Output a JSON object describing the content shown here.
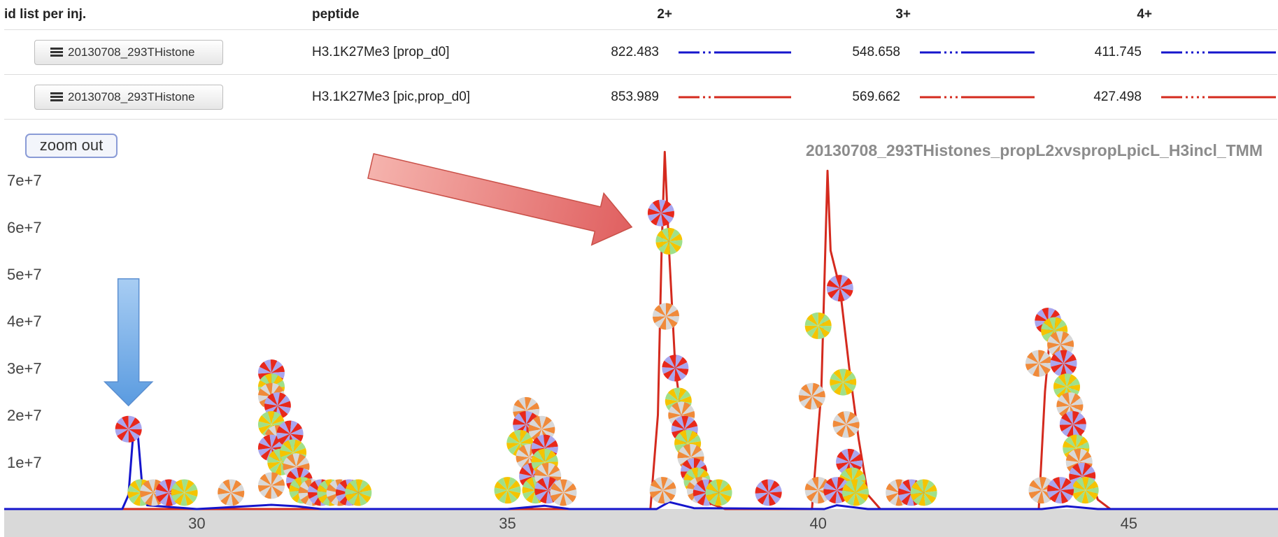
{
  "table": {
    "headers": [
      "id list per inj.",
      "peptide",
      "2+",
      "3+",
      "4+"
    ],
    "rows": [
      {
        "file": "20130708_293THistone",
        "peptide": "H3.1K27Me3 [prop_d0]",
        "mz2": "822.483",
        "mz3": "548.658",
        "mz4": "411.745",
        "color": "#1515cc"
      },
      {
        "file": "20130708_293THistone",
        "peptide": "H3.1K27Me3 [pic,prop_d0]",
        "mz2": "853.989",
        "mz3": "569.662",
        "mz4": "427.498",
        "color": "#d42a1e"
      }
    ]
  },
  "zoom_label": "zoom out",
  "chart_data": {
    "type": "line",
    "title": "20130708_293THistones_propL2xvspropLpicL_H3incl_TMM",
    "xlim": [
      26.9,
      47.4
    ],
    "ylim": [
      0,
      75000000
    ],
    "x_ticks": [
      30,
      35,
      40,
      45
    ],
    "y_ticks": [
      10000000,
      20000000,
      30000000,
      40000000,
      50000000,
      60000000,
      70000000
    ],
    "y_tick_labels": [
      "1e+7",
      "2e+7",
      "3e+7",
      "4e+7",
      "5e+7",
      "6e+7",
      "7e+7"
    ],
    "series": [
      {
        "color": "#d42a1e",
        "values": [
          [
            26.9,
            0
          ],
          [
            37.3,
            0
          ],
          [
            37.42,
            20000000
          ],
          [
            37.48,
            55000000
          ],
          [
            37.53,
            76000000
          ],
          [
            37.6,
            55000000
          ],
          [
            37.7,
            30000000
          ],
          [
            37.9,
            10000000
          ],
          [
            38.2,
            1500000
          ],
          [
            38.5,
            0
          ],
          [
            39.9,
            0
          ],
          [
            40.05,
            25000000
          ],
          [
            40.1,
            48000000
          ],
          [
            40.15,
            72000000
          ],
          [
            40.2,
            55000000
          ],
          [
            40.35,
            47000000
          ],
          [
            40.5,
            30000000
          ],
          [
            40.65,
            15000000
          ],
          [
            40.8,
            3000000
          ],
          [
            41,
            0
          ],
          [
            43.55,
            0
          ],
          [
            43.65,
            25000000
          ],
          [
            43.75,
            40000000
          ],
          [
            43.9,
            36000000
          ],
          [
            44.1,
            25000000
          ],
          [
            44.3,
            10000000
          ],
          [
            44.5,
            2000000
          ],
          [
            44.7,
            0
          ],
          [
            47.4,
            0
          ]
        ]
      },
      {
        "color": "#1515cc",
        "values": [
          [
            26.9,
            0
          ],
          [
            28.8,
            0
          ],
          [
            28.9,
            3000000
          ],
          [
            28.97,
            15000000
          ],
          [
            29.05,
            16000000
          ],
          [
            29.12,
            5000000
          ],
          [
            29.2,
            800000
          ],
          [
            30,
            0
          ],
          [
            31.2,
            900000
          ],
          [
            31.6,
            600000
          ],
          [
            32,
            0
          ],
          [
            35,
            0
          ],
          [
            35.6,
            700000
          ],
          [
            36,
            0
          ],
          [
            37.4,
            0
          ],
          [
            37.6,
            1500000
          ],
          [
            38,
            200000
          ],
          [
            40.1,
            0
          ],
          [
            40.3,
            800000
          ],
          [
            40.8,
            0
          ],
          [
            43.6,
            0
          ],
          [
            44,
            600000
          ],
          [
            44.5,
            0
          ],
          [
            47.4,
            0
          ]
        ]
      }
    ],
    "markers": [
      [
        28.9,
        17000000
      ],
      [
        29.1,
        3500000
      ],
      [
        29.3,
        3500000
      ],
      [
        29.55,
        3500000
      ],
      [
        29.8,
        3500000
      ],
      [
        30.55,
        3500000
      ],
      [
        31.2,
        29000000
      ],
      [
        31.2,
        26000000
      ],
      [
        31.2,
        24000000
      ],
      [
        31.3,
        22000000
      ],
      [
        31.2,
        18000000
      ],
      [
        31.3,
        15000000
      ],
      [
        31.2,
        13000000
      ],
      [
        31.35,
        10000000
      ],
      [
        31.2,
        5000000
      ],
      [
        31.5,
        16000000
      ],
      [
        31.55,
        12000000
      ],
      [
        31.6,
        9000000
      ],
      [
        31.65,
        6000000
      ],
      [
        31.7,
        4000000
      ],
      [
        31.85,
        3500000
      ],
      [
        32,
        3500000
      ],
      [
        32.15,
        3500000
      ],
      [
        32.3,
        3500000
      ],
      [
        32.45,
        3500000
      ],
      [
        32.6,
        3500000
      ],
      [
        35.3,
        21000000
      ],
      [
        35.3,
        18000000
      ],
      [
        35.2,
        14000000
      ],
      [
        35.35,
        11000000
      ],
      [
        35.4,
        7000000
      ],
      [
        35.45,
        4000000
      ],
      [
        35.55,
        17000000
      ],
      [
        35.6,
        13000000
      ],
      [
        35.6,
        10000000
      ],
      [
        35.65,
        7000000
      ],
      [
        35.65,
        4000000
      ],
      [
        35.0,
        4000000
      ],
      [
        35.9,
        3500000
      ],
      [
        37.47,
        63000000
      ],
      [
        37.6,
        57000000
      ],
      [
        37.55,
        41000000
      ],
      [
        37.7,
        30000000
      ],
      [
        37.75,
        23000000
      ],
      [
        37.8,
        20000000
      ],
      [
        37.85,
        17000000
      ],
      [
        37.9,
        14000000
      ],
      [
        37.95,
        11000000
      ],
      [
        38.0,
        8000000
      ],
      [
        38.05,
        6000000
      ],
      [
        38.1,
        4000000
      ],
      [
        38.2,
        3500000
      ],
      [
        38.4,
        3500000
      ],
      [
        37.5,
        4000000
      ],
      [
        39.2,
        3500000
      ],
      [
        40.0,
        39000000
      ],
      [
        39.9,
        24000000
      ],
      [
        40.35,
        47000000
      ],
      [
        40.4,
        27000000
      ],
      [
        40.45,
        18000000
      ],
      [
        40.5,
        10000000
      ],
      [
        40.55,
        6000000
      ],
      [
        40.0,
        4000000
      ],
      [
        40.3,
        4000000
      ],
      [
        40.6,
        3500000
      ],
      [
        41.3,
        3500000
      ],
      [
        41.5,
        3500000
      ],
      [
        41.7,
        3500000
      ],
      [
        43.55,
        31000000
      ],
      [
        43.7,
        40000000
      ],
      [
        43.8,
        38000000
      ],
      [
        43.9,
        35000000
      ],
      [
        43.95,
        31000000
      ],
      [
        44.0,
        26000000
      ],
      [
        44.05,
        22000000
      ],
      [
        44.1,
        18000000
      ],
      [
        44.15,
        13000000
      ],
      [
        44.2,
        10000000
      ],
      [
        44.25,
        7000000
      ],
      [
        44.3,
        4000000
      ],
      [
        43.6,
        4000000
      ],
      [
        43.9,
        4000000
      ]
    ],
    "annotations": [
      {
        "type": "arrow",
        "color": "#5a9be0",
        "direction": "down",
        "x": 28.9,
        "y_from": 49000000,
        "y_to": 22000000
      },
      {
        "type": "arrow",
        "color": "#e06060",
        "direction": "diagonal",
        "x_from": 32.8,
        "y_from": 73000000,
        "x_to": 37.0,
        "y_to": 60000000
      }
    ]
  }
}
